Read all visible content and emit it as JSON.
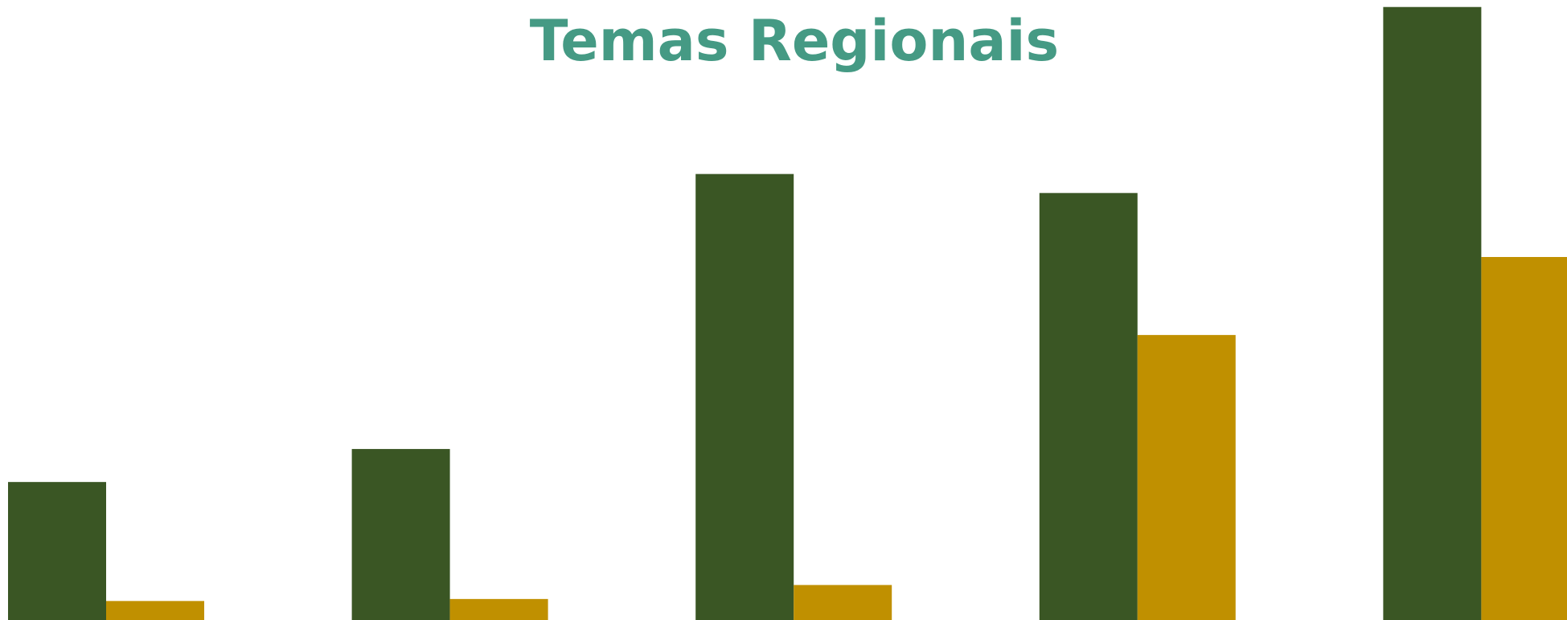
{
  "chart_data": {
    "type": "bar",
    "title": "Temas Regionais",
    "categories": [
      null,
      null,
      null,
      null,
      null
    ],
    "series": [
      {
        "color": "#3a5624",
        "values": [
          138,
          171,
          446,
          427,
          613
        ]
      },
      {
        "color": "#c09000",
        "values": [
          19,
          21,
          35,
          285,
          363
        ]
      }
    ],
    "ylim": [
      0,
      620
    ]
  }
}
